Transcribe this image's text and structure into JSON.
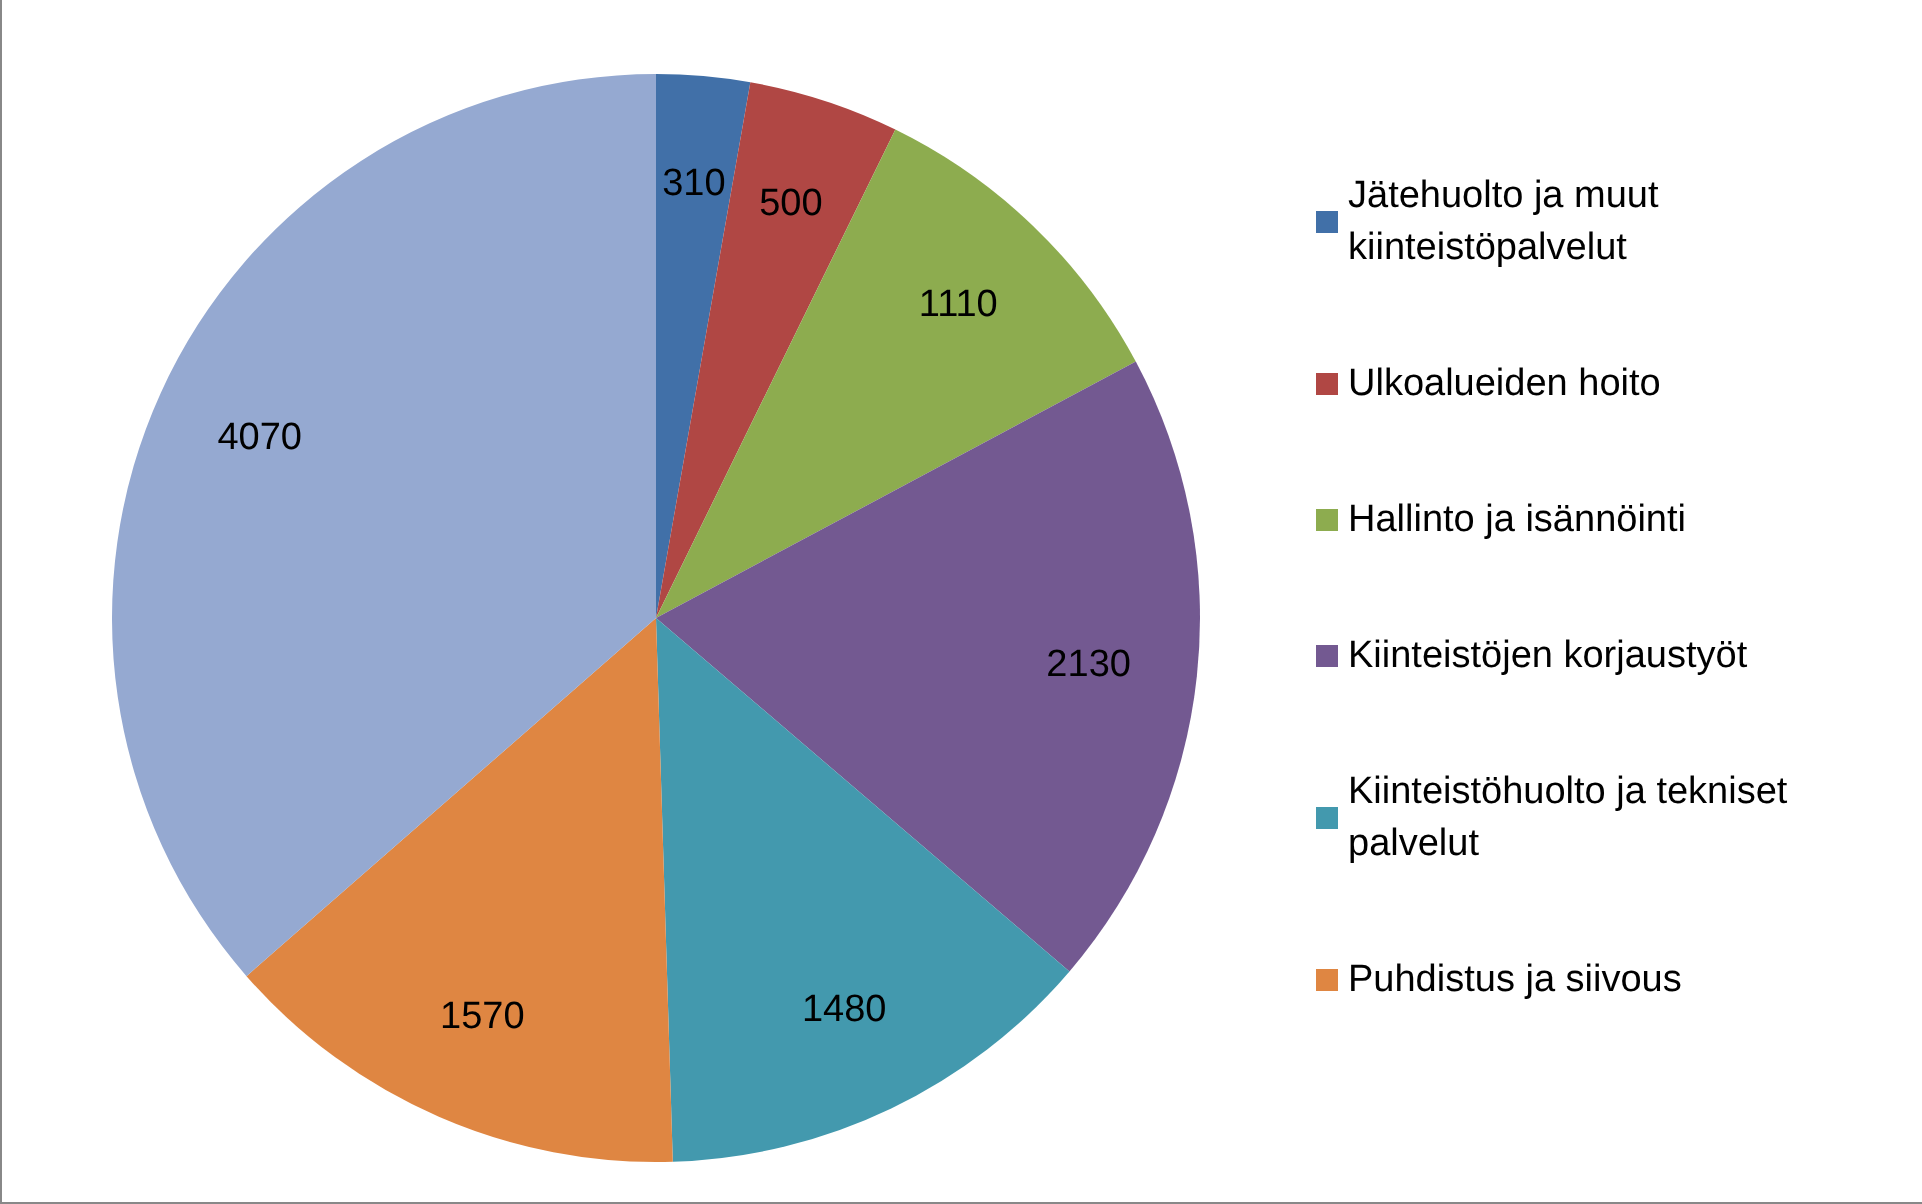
{
  "chart_data": {
    "type": "pie",
    "categories": [
      "Jätehuolto ja muut kiinteistöpalvelut",
      "Ulkoalueiden hoito",
      "Hallinto ja isännöinti",
      "Kiinteistöjen korjaustyöt",
      "Kiinteistöhuolto ja tekniset palvelut",
      "Puhdistus ja siivous",
      null
    ],
    "values": [
      310,
      500,
      1110,
      2130,
      1480,
      1570,
      4070
    ],
    "colors": [
      "#4170a8",
      "#b04744",
      "#8dac4f",
      "#735991",
      "#4399ae",
      "#df8642",
      "#95a9d1"
    ],
    "data_labels": true,
    "legend": "right"
  }
}
